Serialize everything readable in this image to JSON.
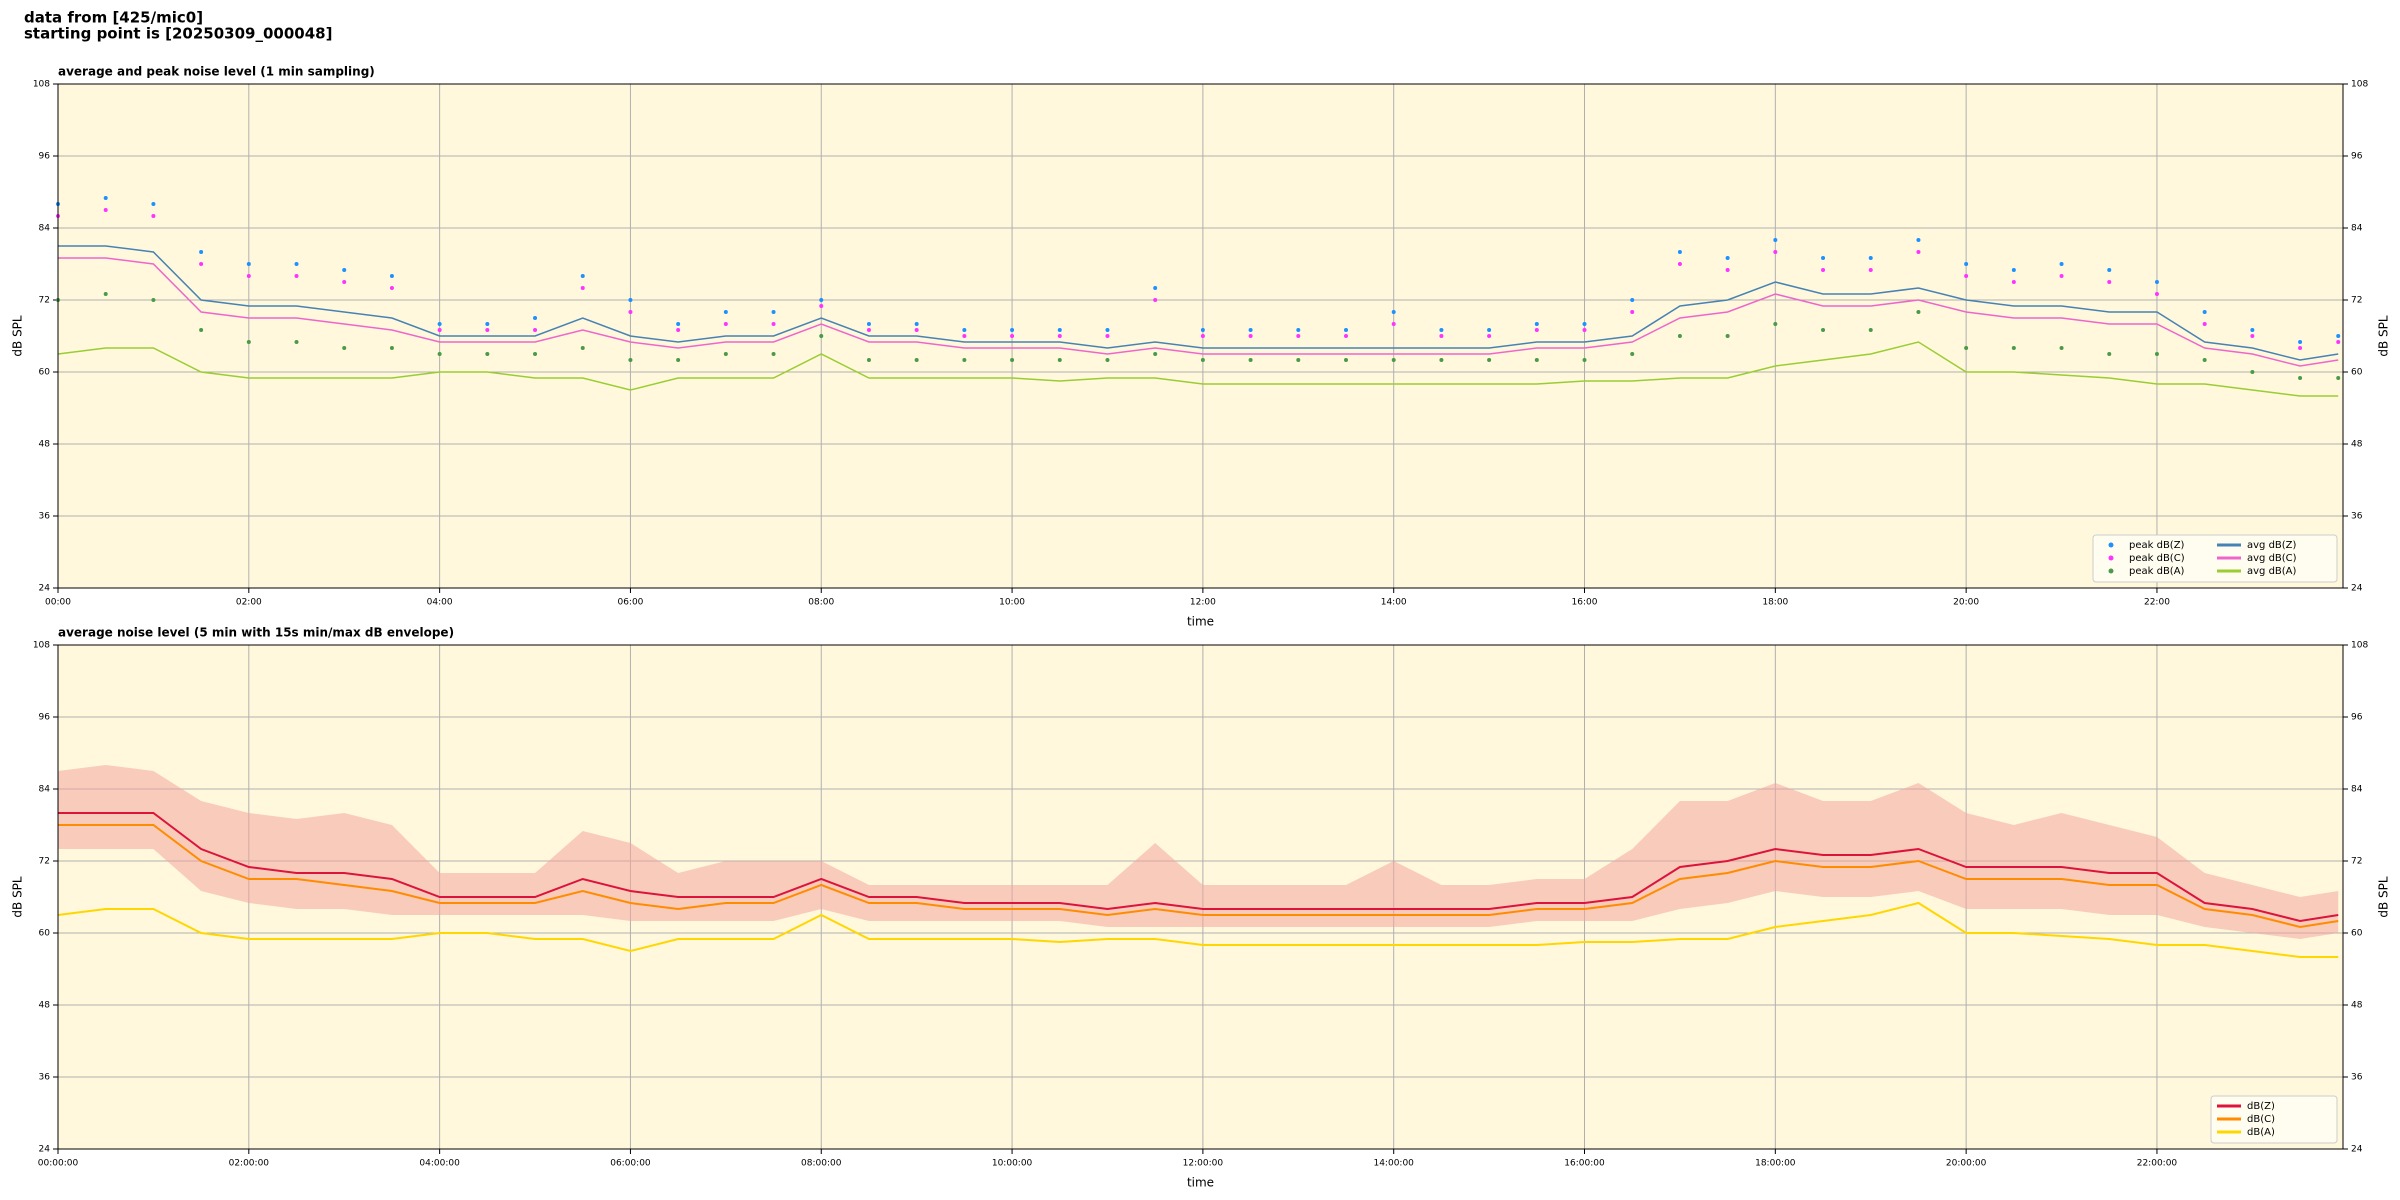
{
  "header": {
    "line1": "data from [425/mic0]",
    "line2": "starting point is [20250309_000048]"
  },
  "chart_data": [
    {
      "type": "line",
      "title": "average and peak noise level (1 min sampling)",
      "x_label": "time",
      "y_label": "dB SPL",
      "background": "#fff8dc",
      "grid": true,
      "legend": "lower right",
      "legend_columns": 2,
      "xlim": [
        0,
        23.95
      ],
      "ylim": [
        24,
        108
      ],
      "xticks": [
        {
          "value": 0,
          "label": "00:00"
        },
        {
          "value": 2,
          "label": "02:00"
        },
        {
          "value": 4,
          "label": "04:00"
        },
        {
          "value": 6,
          "label": "06:00"
        },
        {
          "value": 8,
          "label": "08:00"
        },
        {
          "value": 10,
          "label": "10:00"
        },
        {
          "value": 12,
          "label": "12:00"
        },
        {
          "value": 14,
          "label": "14:00"
        },
        {
          "value": 16,
          "label": "16:00"
        },
        {
          "value": 18,
          "label": "18:00"
        },
        {
          "value": 20,
          "label": "20:00"
        },
        {
          "value": 22,
          "label": "22:00"
        }
      ],
      "yticks": [
        24,
        36,
        48,
        60,
        72,
        84,
        96,
        108
      ],
      "x": [
        0,
        0.5,
        1,
        1.5,
        2,
        2.5,
        3,
        3.5,
        4,
        4.5,
        5,
        5.5,
        6,
        6.5,
        7,
        7.5,
        8,
        8.5,
        9,
        9.5,
        10,
        10.5,
        11,
        11.5,
        12,
        12.5,
        13,
        13.5,
        14,
        14.5,
        15,
        15.5,
        16,
        16.5,
        17,
        17.5,
        18,
        18.5,
        19,
        19.5,
        20,
        20.5,
        21,
        21.5,
        22,
        22.5,
        23,
        23.5,
        23.9
      ],
      "series": [
        {
          "name": "peak dB(Z)",
          "style": "dots",
          "color": "#1e90ff",
          "values": [
            88,
            89,
            88,
            80,
            78,
            78,
            77,
            76,
            68,
            68,
            69,
            76,
            72,
            68,
            70,
            70,
            72,
            68,
            68,
            67,
            67,
            67,
            67,
            74,
            67,
            67,
            67,
            67,
            70,
            67,
            67,
            68,
            68,
            72,
            80,
            79,
            82,
            79,
            79,
            82,
            78,
            77,
            78,
            77,
            75,
            70,
            67,
            65,
            66
          ]
        },
        {
          "name": "peak dB(C)",
          "style": "dots",
          "color": "#ff33ff",
          "values": [
            86,
            87,
            86,
            78,
            76,
            76,
            75,
            74,
            67,
            67,
            67,
            74,
            70,
            67,
            68,
            68,
            71,
            67,
            67,
            66,
            66,
            66,
            66,
            72,
            66,
            66,
            66,
            66,
            68,
            66,
            66,
            67,
            67,
            70,
            78,
            77,
            80,
            77,
            77,
            80,
            76,
            75,
            76,
            75,
            73,
            68,
            66,
            64,
            65
          ]
        },
        {
          "name": "peak dB(A)",
          "style": "dots",
          "color": "#4a9a4a",
          "values": [
            72,
            73,
            72,
            67,
            65,
            65,
            64,
            64,
            63,
            63,
            63,
            64,
            62,
            62,
            63,
            63,
            66,
            62,
            62,
            62,
            62,
            62,
            62,
            63,
            62,
            62,
            62,
            62,
            62,
            62,
            62,
            62,
            62,
            63,
            66,
            66,
            68,
            67,
            67,
            70,
            64,
            64,
            64,
            63,
            63,
            62,
            60,
            59,
            59
          ]
        },
        {
          "name": "avg dB(Z)",
          "style": "line",
          "color": "#4682b4",
          "values": [
            81,
            81,
            80,
            72,
            71,
            71,
            70,
            69,
            66,
            66,
            66,
            69,
            66,
            65,
            66,
            66,
            69,
            66,
            66,
            65,
            65,
            65,
            64,
            65,
            64,
            64,
            64,
            64,
            64,
            64,
            64,
            65,
            65,
            66,
            71,
            72,
            75,
            73,
            73,
            74,
            72,
            71,
            71,
            70,
            70,
            65,
            64,
            62,
            63
          ]
        },
        {
          "name": "avg dB(C)",
          "style": "line",
          "color": "#ee66cc",
          "values": [
            79,
            79,
            78,
            70,
            69,
            69,
            68,
            67,
            65,
            65,
            65,
            67,
            65,
            64,
            65,
            65,
            68,
            65,
            65,
            64,
            64,
            64,
            63,
            64,
            63,
            63,
            63,
            63,
            63,
            63,
            63,
            64,
            64,
            65,
            69,
            70,
            73,
            71,
            71,
            72,
            70,
            69,
            69,
            68,
            68,
            64,
            63,
            61,
            62
          ]
        },
        {
          "name": "avg dB(A)",
          "style": "line",
          "color": "#9acd32",
          "values": [
            63,
            64,
            64,
            60,
            59,
            59,
            59,
            59,
            60,
            60,
            59,
            59,
            57,
            59,
            59,
            59,
            63,
            59,
            59,
            59,
            59,
            58.5,
            59,
            59,
            58,
            58,
            58,
            58,
            58,
            58,
            58,
            58,
            58.5,
            58.5,
            59,
            59,
            61,
            62,
            63,
            65,
            60,
            60,
            59.5,
            59,
            58,
            58,
            57,
            56,
            56
          ]
        }
      ]
    },
    {
      "type": "line",
      "title": "average noise level (5 min with 15s min/max dB envelope)",
      "x_label": "time",
      "y_label": "dB SPL",
      "background": "#fff8dc",
      "grid": true,
      "legend": "lower right",
      "legend_columns": 1,
      "xlim": [
        0,
        23.95
      ],
      "ylim": [
        24,
        108
      ],
      "xticks": [
        {
          "value": 0,
          "label": "00:00:00"
        },
        {
          "value": 2,
          "label": "02:00:00"
        },
        {
          "value": 4,
          "label": "04:00:00"
        },
        {
          "value": 6,
          "label": "06:00:00"
        },
        {
          "value": 8,
          "label": "08:00:00"
        },
        {
          "value": 10,
          "label": "10:00:00"
        },
        {
          "value": 12,
          "label": "12:00:00"
        },
        {
          "value": 14,
          "label": "14:00:00"
        },
        {
          "value": 16,
          "label": "16:00:00"
        },
        {
          "value": 18,
          "label": "18:00:00"
        },
        {
          "value": 20,
          "label": "20:00:00"
        },
        {
          "value": 22,
          "label": "22:00:00"
        }
      ],
      "yticks": [
        24,
        36,
        48,
        60,
        72,
        84,
        96,
        108
      ],
      "x": [
        0,
        0.5,
        1,
        1.5,
        2,
        2.5,
        3,
        3.5,
        4,
        4.5,
        5,
        5.5,
        6,
        6.5,
        7,
        7.5,
        8,
        8.5,
        9,
        9.5,
        10,
        10.5,
        11,
        11.5,
        12,
        12.5,
        13,
        13.5,
        14,
        14.5,
        15,
        15.5,
        16,
        16.5,
        17,
        17.5,
        18,
        18.5,
        19,
        19.5,
        20,
        20.5,
        21,
        21.5,
        22,
        22.5,
        23,
        23.5,
        23.9
      ],
      "band": {
        "color": "#f4a6a0",
        "upper": [
          87,
          88,
          87,
          82,
          80,
          79,
          80,
          78,
          70,
          70,
          70,
          77,
          75,
          70,
          72,
          72,
          72,
          68,
          68,
          68,
          68,
          68,
          68,
          75,
          68,
          68,
          68,
          68,
          72,
          68,
          68,
          69,
          69,
          74,
          82,
          82,
          85,
          82,
          82,
          85,
          80,
          78,
          80,
          78,
          76,
          70,
          68,
          66,
          67
        ],
        "lower": [
          74,
          74,
          74,
          67,
          65,
          64,
          64,
          63,
          63,
          63,
          63,
          63,
          62,
          62,
          62,
          62,
          64,
          62,
          62,
          62,
          62,
          62,
          61,
          61,
          61,
          61,
          61,
          61,
          61,
          61,
          61,
          62,
          62,
          62,
          64,
          65,
          67,
          66,
          66,
          67,
          64,
          64,
          64,
          63,
          63,
          61,
          60,
          59,
          60
        ]
      },
      "series": [
        {
          "name": "dB(Z)",
          "style": "line",
          "color": "#dc143c",
          "values": [
            80,
            80,
            80,
            74,
            71,
            70,
            70,
            69,
            66,
            66,
            66,
            69,
            67,
            66,
            66,
            66,
            69,
            66,
            66,
            65,
            65,
            65,
            64,
            65,
            64,
            64,
            64,
            64,
            64,
            64,
            64,
            65,
            65,
            66,
            71,
            72,
            74,
            73,
            73,
            74,
            71,
            71,
            71,
            70,
            70,
            65,
            64,
            62,
            63
          ]
        },
        {
          "name": "dB(C)",
          "style": "line",
          "color": "#ff8c00",
          "values": [
            78,
            78,
            78,
            72,
            69,
            69,
            68,
            67,
            65,
            65,
            65,
            67,
            65,
            64,
            65,
            65,
            68,
            65,
            65,
            64,
            64,
            64,
            63,
            64,
            63,
            63,
            63,
            63,
            63,
            63,
            63,
            64,
            64,
            65,
            69,
            70,
            72,
            71,
            71,
            72,
            69,
            69,
            69,
            68,
            68,
            64,
            63,
            61,
            62
          ]
        },
        {
          "name": "dB(A)",
          "style": "line",
          "color": "#ffd700",
          "values": [
            63,
            64,
            64,
            60,
            59,
            59,
            59,
            59,
            60,
            60,
            59,
            59,
            57,
            59,
            59,
            59,
            63,
            59,
            59,
            59,
            59,
            58.5,
            59,
            59,
            58,
            58,
            58,
            58,
            58,
            58,
            58,
            58,
            58.5,
            58.5,
            59,
            59,
            61,
            62,
            63,
            65,
            60,
            60,
            59.5,
            59,
            58,
            58,
            57,
            56,
            56
          ]
        }
      ]
    }
  ]
}
